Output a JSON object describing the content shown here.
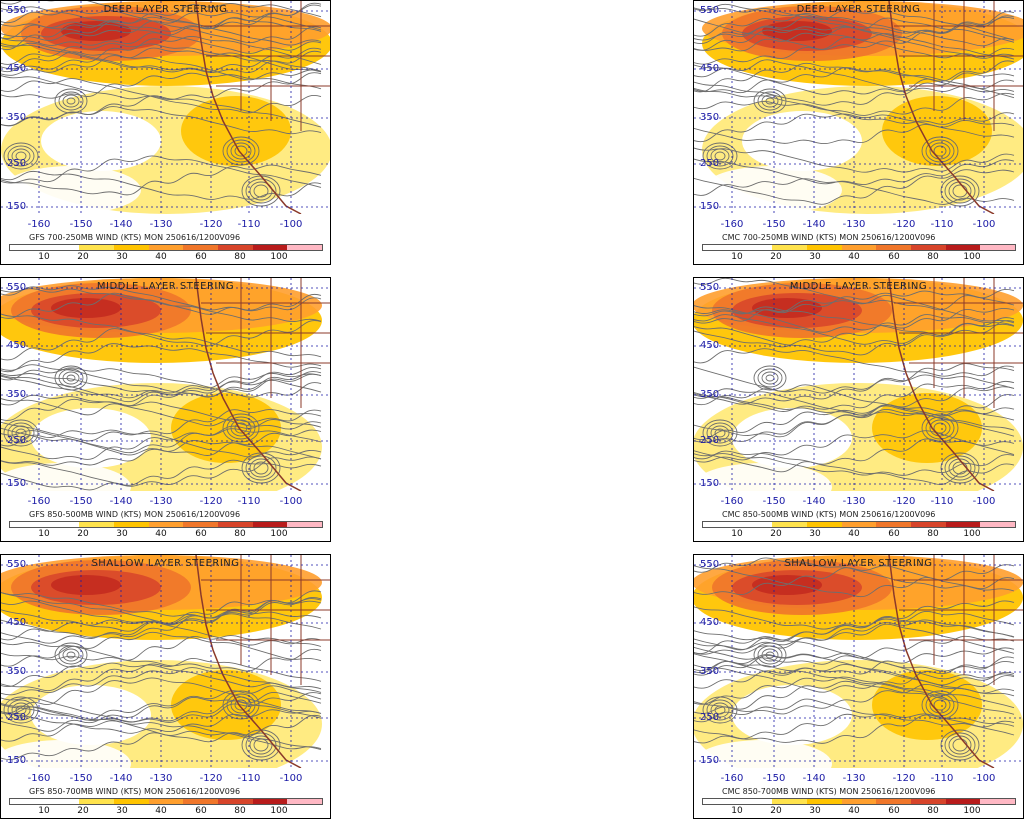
{
  "colors": {
    "levels": [
      "#ffffff",
      "#ffffff",
      "#ffe34d",
      "#ffc400",
      "#ff9f2e",
      "#f0762a",
      "#d7442a",
      "#b81b1b",
      "#ffb8c4"
    ],
    "contour": "#6e6e6e",
    "border": "#8b3a2a",
    "grid": "#1a1aa6"
  },
  "legend_ticks": [
    "10",
    "20",
    "30",
    "40",
    "60",
    "80",
    "100"
  ],
  "lat_labels": [
    "550",
    "450",
    "350",
    "250",
    "150"
  ],
  "lon_labels": [
    "-160",
    "-150",
    "-140",
    "-130",
    "-120",
    "-110",
    "-100"
  ],
  "panels": [
    {
      "title": "DEEP LAYER STEERING",
      "caption": "GFS 700-250MB WIND (KTS) MON 250616/1200V096"
    },
    {
      "title": "DEEP LAYER STEERING",
      "caption": "CMC 700-250MB WIND (KTS) MON 250616/1200V096"
    },
    {
      "title": "MIDDLE LAYER STEERING",
      "caption": "GFS 850-500MB WIND (KTS) MON 250616/1200V096"
    },
    {
      "title": "MIDDLE LAYER STEERING",
      "caption": "CMC 850-500MB WIND (KTS) MON 250616/1200V096"
    },
    {
      "title": "SHALLOW LAYER STEERING",
      "caption": "GFS 850-700MB WIND (KTS) MON 250616/1200V096"
    },
    {
      "title": "SHALLOW LAYER STEERING",
      "caption": "CMC 850-700MB WIND (KTS) MON 250616/1200V096"
    }
  ]
}
